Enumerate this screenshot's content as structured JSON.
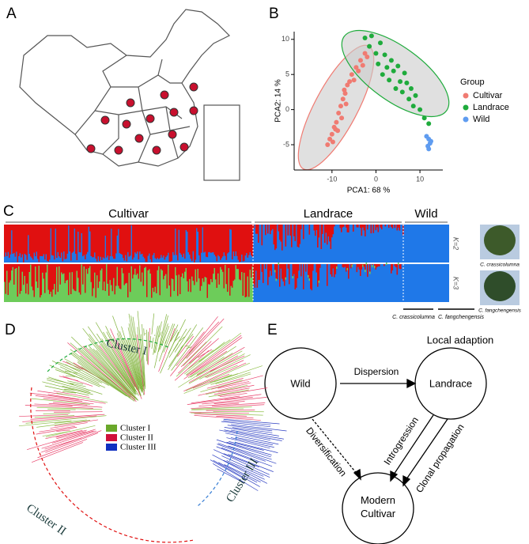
{
  "panel_labels": [
    "A",
    "B",
    "C",
    "D",
    "E"
  ],
  "chart_data": {
    "type": "scatter",
    "xlabel": "PCA1: 68 %",
    "ylabel": "PCA2: 14 %",
    "legend_title": "Group",
    "xlim": [
      -18.6,
      15.2
    ],
    "ylim": [
      -8.6,
      11.1
    ],
    "xticks": [
      -10,
      0,
      10
    ],
    "yticks": [
      -5,
      0,
      5,
      10
    ],
    "series": [
      {
        "name": "Cultivar",
        "color": "#f07b72",
        "x": [
          -11,
          -10.5,
          -10,
          -9.8,
          -9.5,
          -9,
          -8.7,
          -8.5,
          -8,
          -7.8,
          -7.5,
          -7,
          -6.8,
          -6.5,
          -6,
          -5.5,
          -5,
          -4.5,
          -4,
          -3.5,
          -3,
          -2.5,
          -2,
          -9.2,
          -7.2
        ],
        "y": [
          -5,
          -4.2,
          -3.5,
          -4.6,
          -2.5,
          -1.8,
          -3,
          -0.5,
          0.5,
          -1.2,
          1.5,
          2.3,
          0.8,
          3.5,
          4,
          5,
          4.2,
          6,
          5.5,
          7,
          6.3,
          8,
          7.5,
          -2.8,
          2.8
        ]
      },
      {
        "name": "Landrace",
        "color": "#1fab3c",
        "x": [
          -2.5,
          -1.5,
          -1,
          0,
          0.5,
          1,
          1.5,
          2,
          2.5,
          3,
          3.5,
          4,
          4.5,
          5,
          5.5,
          6,
          6.5,
          7,
          7.5,
          8,
          8.5,
          9,
          10,
          11,
          12
        ],
        "y": [
          10.2,
          9,
          10.5,
          8,
          6.5,
          9.5,
          5,
          7.8,
          6,
          4.2,
          7,
          5.5,
          3,
          6.2,
          4,
          2.5,
          5.2,
          3.8,
          1.5,
          3,
          0.5,
          2,
          0,
          -1.2,
          -2
        ]
      },
      {
        "name": "Wild",
        "color": "#5f9cf0",
        "x": [
          11.5,
          12,
          12.3,
          11.8,
          12.5,
          12
        ],
        "y": [
          -3.8,
          -4.2,
          -4.8,
          -5.2,
          -4.5,
          -5.6
        ]
      }
    ]
  },
  "structure": {
    "groups": [
      "Cultivar",
      "Landrace",
      "Wild"
    ],
    "k_labels": [
      "K=2",
      "K=3"
    ],
    "species": [
      "C. crassicolumna",
      "C. fangchengensis"
    ],
    "photo_captions": [
      "C. crassicolumna",
      "C. fangchengensis"
    ]
  },
  "tree": {
    "cluster_labels": [
      "Cluster I",
      "Cluster II",
      "Cluster III"
    ],
    "legend": [
      "Cluster I",
      "Cluster II",
      "Cluster III"
    ]
  },
  "diagram": {
    "nodes": [
      "Wild",
      "Landrace",
      "Modern\nCultivar"
    ],
    "note": "Local adaption",
    "edges": [
      "Dispersion",
      "Diversification",
      "Introgression",
      "Clonal propagation"
    ]
  }
}
